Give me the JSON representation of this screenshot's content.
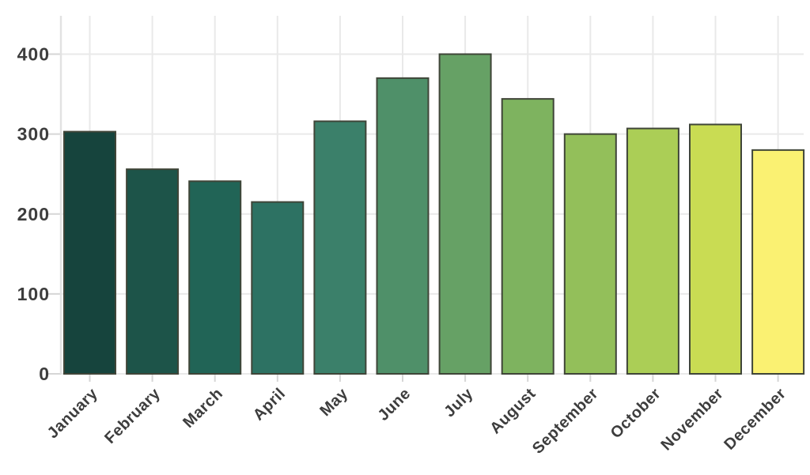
{
  "chart_data": {
    "type": "bar",
    "title": "",
    "xlabel": "",
    "ylabel": "",
    "categories": [
      "January",
      "February",
      "March",
      "April",
      "May",
      "June",
      "July",
      "August",
      "September",
      "October",
      "November",
      "December"
    ],
    "values": [
      303,
      256,
      241,
      215,
      316,
      370,
      400,
      344,
      300,
      307,
      312,
      280
    ],
    "bar_colors": [
      "#16443d",
      "#1d5449",
      "#216456",
      "#2d7263",
      "#3b806a",
      "#4f9069",
      "#66a165",
      "#7eb35f",
      "#93bf5a",
      "#abce56",
      "#c9dc53",
      "#faf172"
    ],
    "bar_edge_color": "#3f4538",
    "yticks": [
      0,
      100,
      200,
      300,
      400
    ],
    "ylim": [
      0,
      448
    ],
    "grid": true,
    "legend": null,
    "x_tick_rotation_deg": 45,
    "colors": {
      "background": "#ffffff",
      "grid_line": "#e9e9e9",
      "axis_spine": "#e2e2e2",
      "tick_mark": "#d6d6d6",
      "tick_label": "#3d3d3d"
    }
  }
}
